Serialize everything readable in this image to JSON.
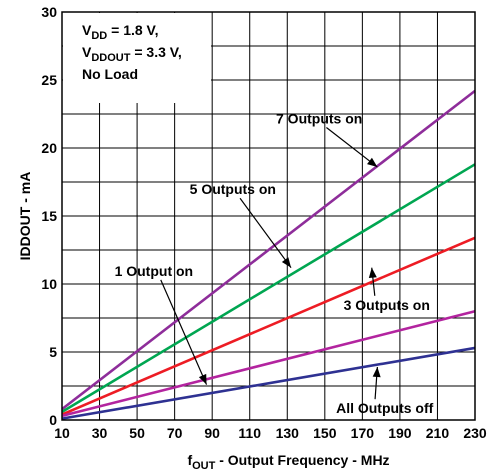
{
  "chart_data": {
    "type": "line",
    "xlabel": {
      "main": "f",
      "sub": "OUT",
      "rest": " - Output Frequency - MHz"
    },
    "ylabel": "IDDOUT - mA",
    "xlim": [
      10,
      230
    ],
    "ylim": [
      0,
      30
    ],
    "x_ticks": [
      10,
      30,
      50,
      70,
      90,
      110,
      130,
      150,
      170,
      190,
      210,
      230
    ],
    "y_ticks": [
      0,
      5,
      10,
      15,
      20,
      25,
      30
    ],
    "grid": true,
    "conditions": [
      {
        "main": "V",
        "sub": "DD",
        "rest": " = 1.8 V,"
      },
      {
        "main": "V",
        "sub": "DDOUT",
        "rest": " = 3.3 V,"
      },
      {
        "main": "No Load",
        "sub": "",
        "rest": ""
      }
    ],
    "series": [
      {
        "label": "7 Outputs on",
        "color": "#8e2d9a",
        "x": [
          10,
          230
        ],
        "y": [
          0.8,
          24.2
        ]
      },
      {
        "label": "5 Outputs on",
        "color": "#00a651",
        "x": [
          10,
          230
        ],
        "y": [
          0.6,
          18.8
        ]
      },
      {
        "label": "3 Outputs on",
        "color": "#ed1c24",
        "x": [
          10,
          230
        ],
        "y": [
          0.4,
          13.4
        ]
      },
      {
        "label": "1 Output on",
        "color": "#b3249f",
        "x": [
          10,
          230
        ],
        "y": [
          0.3,
          8.0
        ]
      },
      {
        "label": "All Outputs off",
        "color": "#2e3192",
        "x": [
          10,
          230
        ],
        "y": [
          0.1,
          5.3
        ]
      }
    ]
  }
}
